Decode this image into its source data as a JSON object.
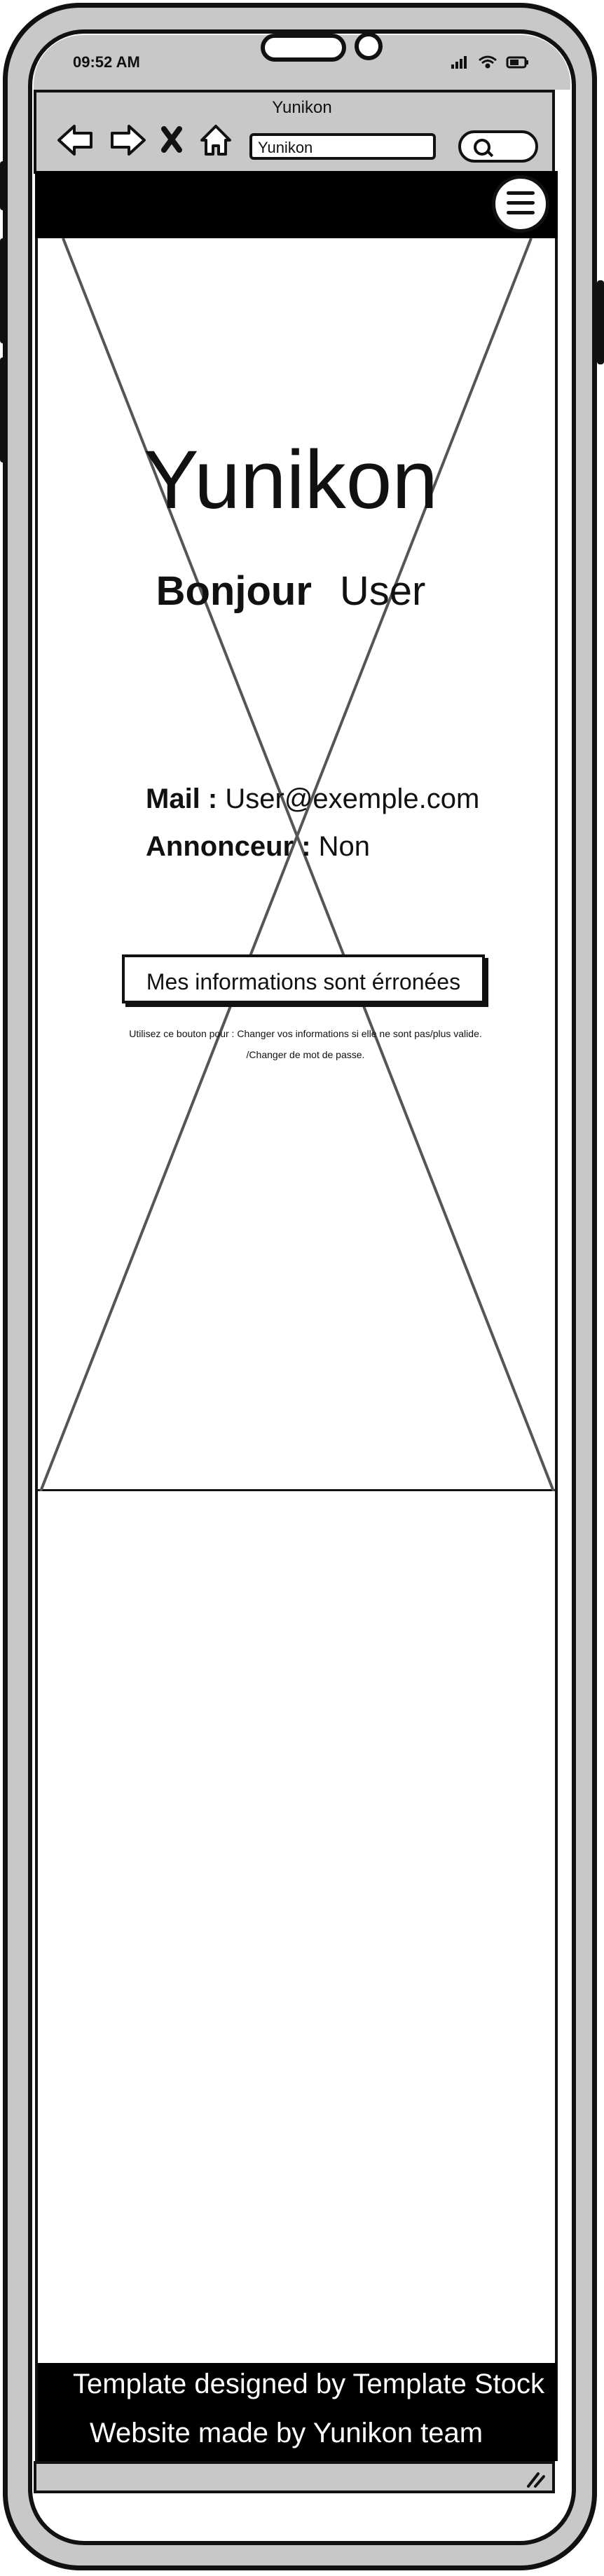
{
  "status_bar": {
    "time": "09:52 AM"
  },
  "browser": {
    "title": "Yunikon",
    "url": "Yunikon",
    "nav_icons": [
      "back-arrow-icon",
      "forward-arrow-icon",
      "close-icon",
      "home-icon"
    ],
    "search_icon": "search-icon"
  },
  "header": {
    "menu_icon": "hamburger-menu-icon"
  },
  "main": {
    "brand_title": "Yunikon",
    "greeting_label": "Bonjour",
    "greeting_name": "User",
    "mail_label": "Mail :",
    "mail_value": "User@exemple.com",
    "advertiser_label": "Annonceur :",
    "advertiser_value": "Non",
    "wrong_info_button": "Mes informations sont érronées",
    "helper_line_1": "Utilisez ce bouton pour : Changer vos informations si elle ne sont pas/plus valide.",
    "helper_line_2": "/Changer de mot de passe."
  },
  "footer": {
    "line_1": "Template designed by Template Stock",
    "line_2": "Website made by Yunikon team"
  },
  "colors": {
    "shell": "#c8c8c8",
    "ink": "#111111",
    "nav": "#000000"
  }
}
